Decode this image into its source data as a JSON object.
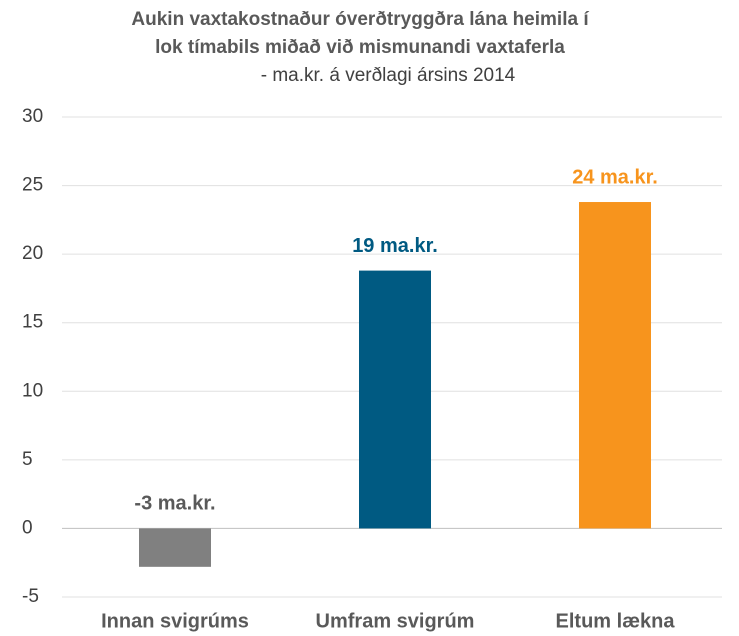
{
  "chart_data": {
    "type": "bar",
    "title": [
      "Aukin vaxtakostnaður óverðtryggðra lána heimila í",
      "lok tímabils miðað við mismunandi vaxtaferla"
    ],
    "subtitle": "- ma.kr. á verðlagi ársins 2014",
    "categories": [
      "Innan svigrúms",
      "Umfram svigrúm",
      "Eltum lækna"
    ],
    "values": [
      -2.8,
      18.8,
      23.8
    ],
    "value_labels": [
      "-3 ma.kr.",
      "19 ma.kr.",
      "24 ma.kr."
    ],
    "colors": [
      "#808080",
      "#005a82",
      "#f7941d"
    ],
    "label_colors": [
      "#595959",
      "#005a82",
      "#f7941d"
    ],
    "ylim": [
      -5,
      30
    ],
    "yticks": [
      -5,
      0,
      5,
      10,
      15,
      20,
      25,
      30
    ],
    "grid": true
  }
}
